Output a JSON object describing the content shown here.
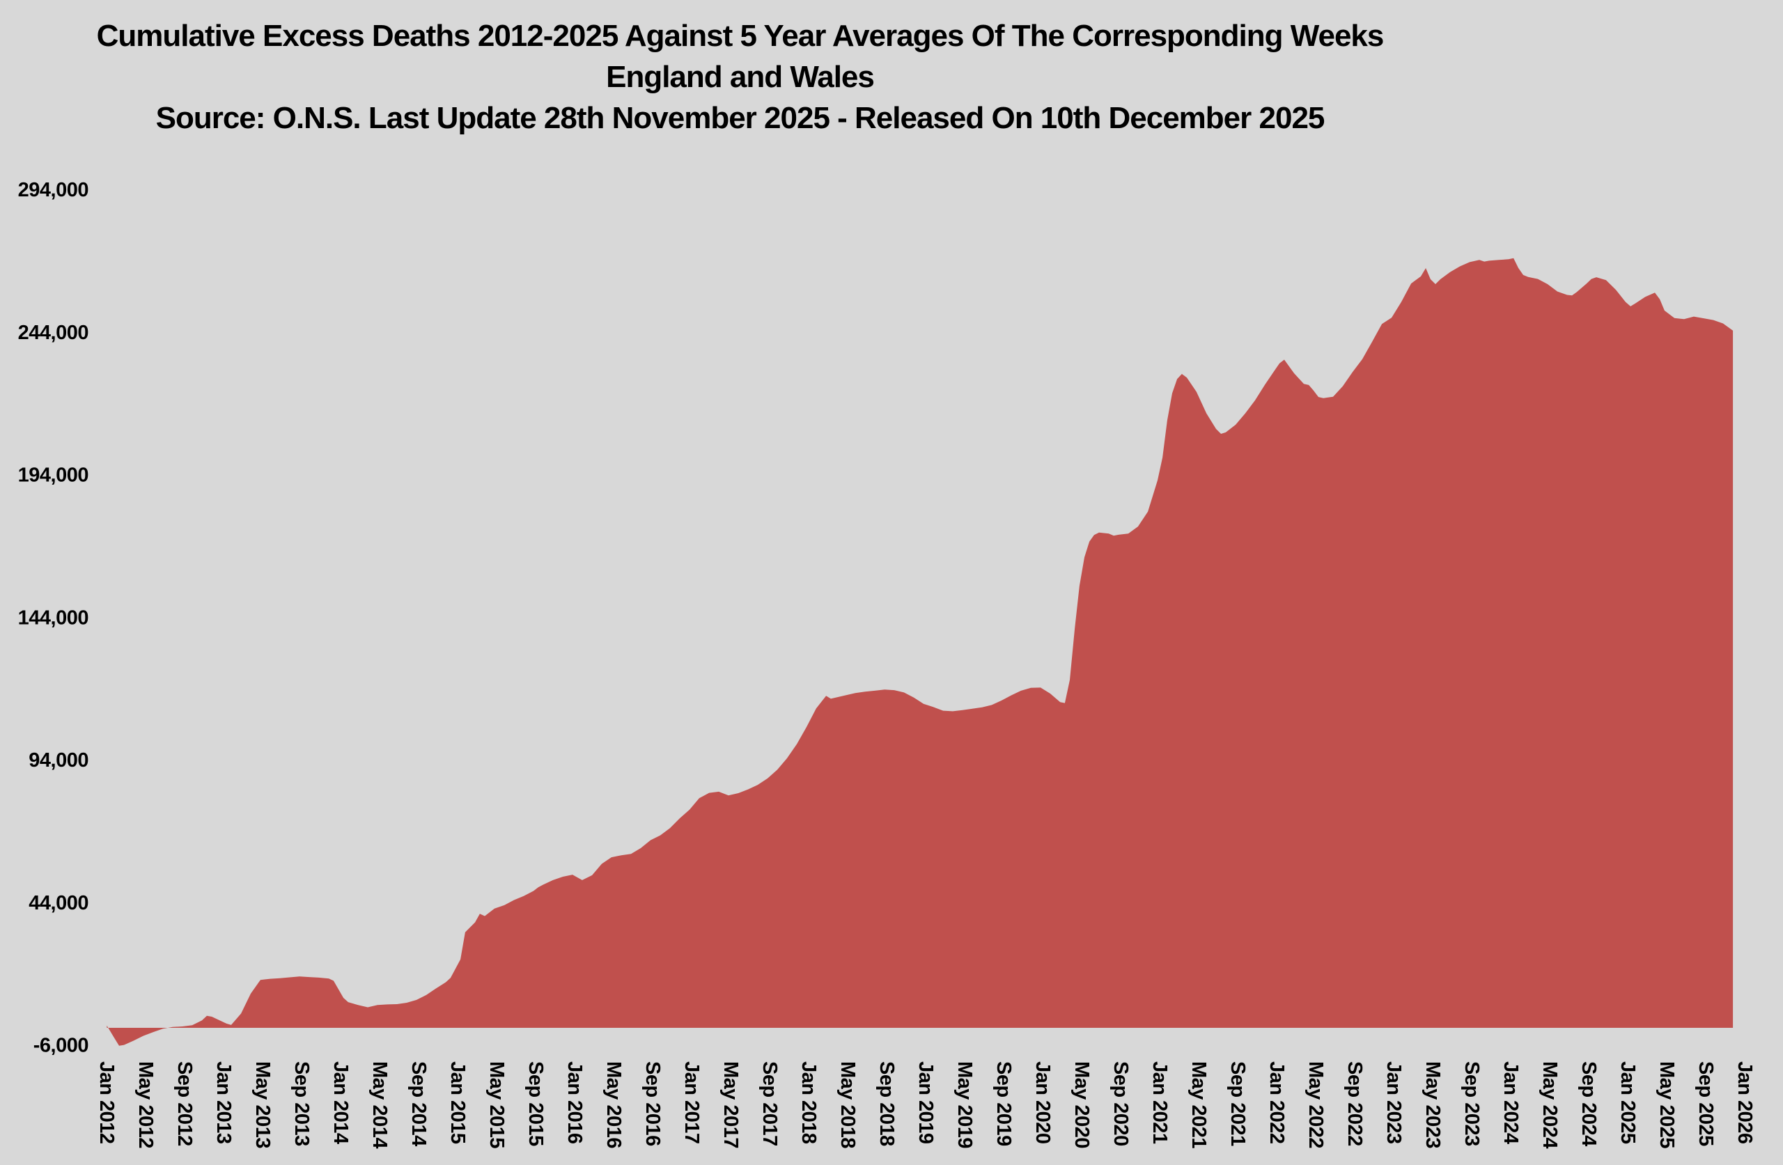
{
  "colors": {
    "background": "#d8d8d8",
    "area_fill": "#c0504d",
    "text": "#000000"
  },
  "chart_data": {
    "type": "area",
    "title": "Cumulative Excess Deaths 2012-2025 Against 5 Year Averages Of The Corresponding Weeks",
    "subtitle": "England and Wales",
    "source": "Source: O.N.S. Last Update 28th November 2025 - Released On 10th December 2025",
    "xlabel": "",
    "ylabel": "",
    "grid": false,
    "legend": "none",
    "x_unit": "decimal_year",
    "xlim": [
      2012.0,
      2026.0
    ],
    "ylim": [
      -6000,
      294000
    ],
    "y_ticks": [
      {
        "value": 294000,
        "label": "294,000"
      },
      {
        "value": 244000,
        "label": "244,000"
      },
      {
        "value": 194000,
        "label": "194,000"
      },
      {
        "value": 144000,
        "label": "144,000"
      },
      {
        "value": 94000,
        "label": "94,000"
      },
      {
        "value": 44000,
        "label": "44,000"
      },
      {
        "value": -6000,
        "label": "-6,000"
      }
    ],
    "x_ticks": [
      {
        "t": 2012.0,
        "label": "Jan 2012"
      },
      {
        "t": 2012.333,
        "label": "May 2012"
      },
      {
        "t": 2012.667,
        "label": "Sep 2012"
      },
      {
        "t": 2013.0,
        "label": "Jan 2013"
      },
      {
        "t": 2013.333,
        "label": "May 2013"
      },
      {
        "t": 2013.667,
        "label": "Sep 2013"
      },
      {
        "t": 2014.0,
        "label": "Jan 2014"
      },
      {
        "t": 2014.333,
        "label": "May 2014"
      },
      {
        "t": 2014.667,
        "label": "Sep 2014"
      },
      {
        "t": 2015.0,
        "label": "Jan 2015"
      },
      {
        "t": 2015.333,
        "label": "May 2015"
      },
      {
        "t": 2015.667,
        "label": "Sep 2015"
      },
      {
        "t": 2016.0,
        "label": "Jan 2016"
      },
      {
        "t": 2016.333,
        "label": "May 2016"
      },
      {
        "t": 2016.667,
        "label": "Sep 2016"
      },
      {
        "t": 2017.0,
        "label": "Jan 2017"
      },
      {
        "t": 2017.333,
        "label": "May 2017"
      },
      {
        "t": 2017.667,
        "label": "Sep 2017"
      },
      {
        "t": 2018.0,
        "label": "Jan 2018"
      },
      {
        "t": 2018.333,
        "label": "May 2018"
      },
      {
        "t": 2018.667,
        "label": "Sep 2018"
      },
      {
        "t": 2019.0,
        "label": "Jan 2019"
      },
      {
        "t": 2019.333,
        "label": "May 2019"
      },
      {
        "t": 2019.667,
        "label": "Sep 2019"
      },
      {
        "t": 2020.0,
        "label": "Jan 2020"
      },
      {
        "t": 2020.333,
        "label": "May 2020"
      },
      {
        "t": 2020.667,
        "label": "Sep 2020"
      },
      {
        "t": 2021.0,
        "label": "Jan 2021"
      },
      {
        "t": 2021.333,
        "label": "May 2021"
      },
      {
        "t": 2021.667,
        "label": "Sep 2021"
      },
      {
        "t": 2022.0,
        "label": "Jan 2022"
      },
      {
        "t": 2022.333,
        "label": "May 2022"
      },
      {
        "t": 2022.667,
        "label": "Sep 2022"
      },
      {
        "t": 2023.0,
        "label": "Jan 2023"
      },
      {
        "t": 2023.333,
        "label": "May 2023"
      },
      {
        "t": 2023.667,
        "label": "Sep 2023"
      },
      {
        "t": 2024.0,
        "label": "Jan 2024"
      },
      {
        "t": 2024.333,
        "label": "May 2024"
      },
      {
        "t": 2024.667,
        "label": "Sep 2024"
      },
      {
        "t": 2025.0,
        "label": "Jan 2025"
      },
      {
        "t": 2025.333,
        "label": "May 2025"
      },
      {
        "t": 2025.667,
        "label": "Sep 2025"
      },
      {
        "t": 2026.0,
        "label": "Jan 2026"
      }
    ],
    "series": [
      {
        "name": "Cumulative excess deaths vs 5-year average",
        "points": [
          [
            2012.02,
            800
          ],
          [
            2012.083,
            -3500
          ],
          [
            2012.125,
            -6300
          ],
          [
            2012.167,
            -6000
          ],
          [
            2012.25,
            -4500
          ],
          [
            2012.333,
            -2800
          ],
          [
            2012.417,
            -1500
          ],
          [
            2012.5,
            -300
          ],
          [
            2012.583,
            300
          ],
          [
            2012.667,
            500
          ],
          [
            2012.75,
            900
          ],
          [
            2012.833,
            2600
          ],
          [
            2012.875,
            4200
          ],
          [
            2012.917,
            3900
          ],
          [
            2013.042,
            1500
          ],
          [
            2013.083,
            1000
          ],
          [
            2013.167,
            5000
          ],
          [
            2013.25,
            12000
          ],
          [
            2013.333,
            16800
          ],
          [
            2013.417,
            17200
          ],
          [
            2013.5,
            17400
          ],
          [
            2013.583,
            17700
          ],
          [
            2013.667,
            18000
          ],
          [
            2013.75,
            17800
          ],
          [
            2013.833,
            17600
          ],
          [
            2013.917,
            17300
          ],
          [
            2013.958,
            16500
          ],
          [
            2014.042,
            10500
          ],
          [
            2014.083,
            9000
          ],
          [
            2014.167,
            8000
          ],
          [
            2014.25,
            7200
          ],
          [
            2014.333,
            8000
          ],
          [
            2014.417,
            8200
          ],
          [
            2014.5,
            8300
          ],
          [
            2014.583,
            8800
          ],
          [
            2014.667,
            9800
          ],
          [
            2014.75,
            11500
          ],
          [
            2014.833,
            13800
          ],
          [
            2014.917,
            16000
          ],
          [
            2014.958,
            17500
          ],
          [
            2015.042,
            24000
          ],
          [
            2015.083,
            33500
          ],
          [
            2015.167,
            37000
          ],
          [
            2015.208,
            40000
          ],
          [
            2015.25,
            39200
          ],
          [
            2015.333,
            41800
          ],
          [
            2015.417,
            43000
          ],
          [
            2015.5,
            44800
          ],
          [
            2015.583,
            46200
          ],
          [
            2015.667,
            48000
          ],
          [
            2015.708,
            49300
          ],
          [
            2015.75,
            50200
          ],
          [
            2015.833,
            51800
          ],
          [
            2015.917,
            53000
          ],
          [
            2016.0,
            53700
          ],
          [
            2016.083,
            51800
          ],
          [
            2016.167,
            53500
          ],
          [
            2016.25,
            57500
          ],
          [
            2016.333,
            59800
          ],
          [
            2016.417,
            60500
          ],
          [
            2016.5,
            61000
          ],
          [
            2016.583,
            63000
          ],
          [
            2016.667,
            65800
          ],
          [
            2016.75,
            67500
          ],
          [
            2016.833,
            70000
          ],
          [
            2016.917,
            73500
          ],
          [
            2017.0,
            76500
          ],
          [
            2017.083,
            80500
          ],
          [
            2017.167,
            82400
          ],
          [
            2017.25,
            82800
          ],
          [
            2017.333,
            81500
          ],
          [
            2017.417,
            82300
          ],
          [
            2017.5,
            83600
          ],
          [
            2017.583,
            85200
          ],
          [
            2017.667,
            87500
          ],
          [
            2017.75,
            90500
          ],
          [
            2017.833,
            94500
          ],
          [
            2017.917,
            99500
          ],
          [
            2018.0,
            105500
          ],
          [
            2018.083,
            112000
          ],
          [
            2018.167,
            116400
          ],
          [
            2018.208,
            115400
          ],
          [
            2018.333,
            116600
          ],
          [
            2018.417,
            117400
          ],
          [
            2018.5,
            117900
          ],
          [
            2018.583,
            118200
          ],
          [
            2018.667,
            118600
          ],
          [
            2018.75,
            118400
          ],
          [
            2018.833,
            117600
          ],
          [
            2018.917,
            115800
          ],
          [
            2019.0,
            113600
          ],
          [
            2019.083,
            112500
          ],
          [
            2019.167,
            111200
          ],
          [
            2019.25,
            111000
          ],
          [
            2019.333,
            111400
          ],
          [
            2019.417,
            111900
          ],
          [
            2019.5,
            112400
          ],
          [
            2019.583,
            113200
          ],
          [
            2019.667,
            114800
          ],
          [
            2019.75,
            116600
          ],
          [
            2019.833,
            118200
          ],
          [
            2019.917,
            119200
          ],
          [
            2020.0,
            119300
          ],
          [
            2020.083,
            117200
          ],
          [
            2020.167,
            114200
          ],
          [
            2020.208,
            113900
          ],
          [
            2020.25,
            122000
          ],
          [
            2020.292,
            140000
          ],
          [
            2020.333,
            155000
          ],
          [
            2020.375,
            165000
          ],
          [
            2020.417,
            170500
          ],
          [
            2020.458,
            172800
          ],
          [
            2020.5,
            173700
          ],
          [
            2020.583,
            173300
          ],
          [
            2020.625,
            172600
          ],
          [
            2020.667,
            172900
          ],
          [
            2020.75,
            173300
          ],
          [
            2020.833,
            175800
          ],
          [
            2020.917,
            181000
          ],
          [
            2021.0,
            192000
          ],
          [
            2021.042,
            200000
          ],
          [
            2021.083,
            213000
          ],
          [
            2021.125,
            222500
          ],
          [
            2021.167,
            227500
          ],
          [
            2021.208,
            229300
          ],
          [
            2021.25,
            228000
          ],
          [
            2021.333,
            223000
          ],
          [
            2021.417,
            215500
          ],
          [
            2021.5,
            210000
          ],
          [
            2021.542,
            208300
          ],
          [
            2021.583,
            208800
          ],
          [
            2021.667,
            211500
          ],
          [
            2021.75,
            215500
          ],
          [
            2021.833,
            220000
          ],
          [
            2021.917,
            225500
          ],
          [
            2022.0,
            230500
          ],
          [
            2022.042,
            233000
          ],
          [
            2022.083,
            234300
          ],
          [
            2022.167,
            229500
          ],
          [
            2022.25,
            225800
          ],
          [
            2022.292,
            225400
          ],
          [
            2022.333,
            223500
          ],
          [
            2022.375,
            221200
          ],
          [
            2022.417,
            220800
          ],
          [
            2022.5,
            221300
          ],
          [
            2022.583,
            225000
          ],
          [
            2022.667,
            230000
          ],
          [
            2022.75,
            234500
          ],
          [
            2022.833,
            240500
          ],
          [
            2022.917,
            246800
          ],
          [
            2023.0,
            249000
          ],
          [
            2023.083,
            254500
          ],
          [
            2023.167,
            261000
          ],
          [
            2023.25,
            263500
          ],
          [
            2023.292,
            266400
          ],
          [
            2023.333,
            262500
          ],
          [
            2023.375,
            260800
          ],
          [
            2023.417,
            262500
          ],
          [
            2023.5,
            265000
          ],
          [
            2023.583,
            267000
          ],
          [
            2023.667,
            268500
          ],
          [
            2023.75,
            269300
          ],
          [
            2023.792,
            268700
          ],
          [
            2023.833,
            269000
          ],
          [
            2023.917,
            269300
          ],
          [
            2024.0,
            269500
          ],
          [
            2024.042,
            269900
          ],
          [
            2024.083,
            266500
          ],
          [
            2024.125,
            264000
          ],
          [
            2024.167,
            263300
          ],
          [
            2024.25,
            262600
          ],
          [
            2024.333,
            260800
          ],
          [
            2024.417,
            258200
          ],
          [
            2024.5,
            257000
          ],
          [
            2024.542,
            256800
          ],
          [
            2024.583,
            258000
          ],
          [
            2024.667,
            261000
          ],
          [
            2024.708,
            262600
          ],
          [
            2024.75,
            263200
          ],
          [
            2024.833,
            262200
          ],
          [
            2024.917,
            258800
          ],
          [
            2025.0,
            254500
          ],
          [
            2025.042,
            253000
          ],
          [
            2025.083,
            254000
          ],
          [
            2025.167,
            256300
          ],
          [
            2025.25,
            257800
          ],
          [
            2025.292,
            255500
          ],
          [
            2025.333,
            251500
          ],
          [
            2025.417,
            248900
          ],
          [
            2025.5,
            248500
          ],
          [
            2025.583,
            249400
          ],
          [
            2025.667,
            248800
          ],
          [
            2025.75,
            248200
          ],
          [
            2025.833,
            247000
          ],
          [
            2025.917,
            244500
          ]
        ]
      }
    ]
  }
}
